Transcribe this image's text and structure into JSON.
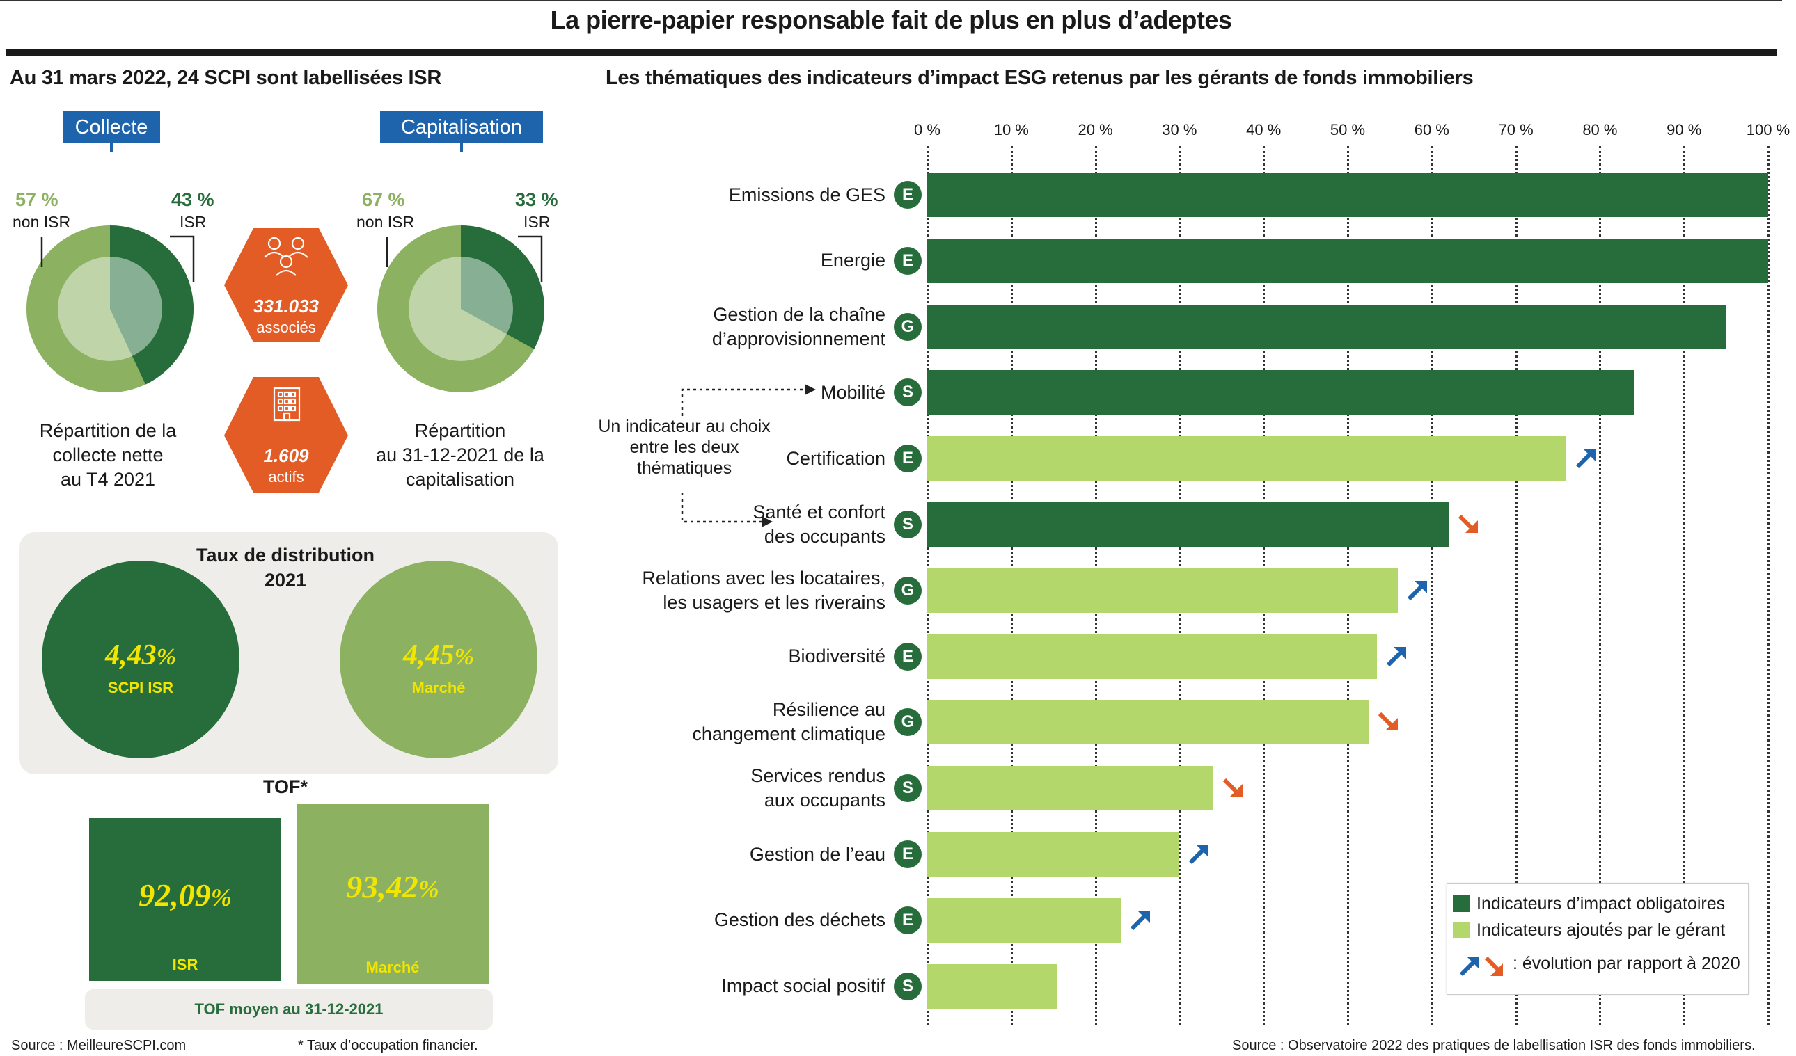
{
  "title": "La pierre-papier responsable fait de plus en plus d’adeptes",
  "left": {
    "heading": "Au 31 mars 2022, 24 SCPI sont labellisées ISR",
    "collecte": {
      "tag": "Collecte",
      "non_isr_pct": "57 %",
      "non_isr_label": "non ISR",
      "isr_pct": "43 %",
      "isr_label": "ISR",
      "caption": [
        "Répartition de la",
        "collecte nette",
        "au T4 2021"
      ]
    },
    "capitalisation": {
      "tag": "Capitalisation",
      "non_isr_pct": "67 %",
      "non_isr_label": "non ISR",
      "isr_pct": "33 %",
      "isr_label": "ISR",
      "caption": [
        "Répartition",
        "au 31-12-2021 de la",
        "capitalisation"
      ]
    },
    "associes": {
      "value": "331.033",
      "label": "associés"
    },
    "actifs": {
      "value": "1.609",
      "label": "actifs"
    },
    "distribution": {
      "title_line1": "Taux de distribution",
      "title_line2": "2021",
      "isr_value": "4,43",
      "isr_unit": "%",
      "isr_label": "SCPI ISR",
      "market_value": "4,45",
      "market_unit": "%",
      "market_label": "Marché"
    },
    "tof": {
      "title": "TOF*",
      "isr_value": "92,09",
      "isr_unit": "%",
      "isr_label": "ISR",
      "market_value": "93,42",
      "market_unit": "%",
      "market_label": "Marché",
      "footer": "TOF moyen au 31-12-2021"
    },
    "source": "Source : MeilleureSCPI.com",
    "footnote": "* Taux d’occupation financier."
  },
  "right": {
    "heading": "Les thématiques des indicateurs d’impact ESG retenus par les gérants de fonds immobiliers",
    "annotation": [
      "Un indicateur au choix",
      "entre les deux",
      "thématiques"
    ],
    "legend": {
      "mandatory": "Indicateurs d’impact obligatoires",
      "added": "Indicateurs ajoutés par le gérant",
      "evolution": ": évolution par rapport à 2020"
    },
    "source": "Source : Observatoire 2022 des pratiques de labellisation ISR des fonds immobiliers."
  },
  "colors": {
    "dark_green": "#266d3b",
    "light_green": "#b3d76b",
    "mid_green": "#8bb161",
    "pale_green": "#c0d6a3",
    "orange": "#e35c25",
    "blue": "#1e64ad",
    "yellow": "#f2e500"
  },
  "chart_data": [
    {
      "type": "pie",
      "categories": [
        "non ISR",
        "ISR"
      ],
      "values": [
        57,
        43
      ],
      "caption": "Répartition de la collecte nette au T4 2021"
    },
    {
      "type": "pie",
      "categories": [
        "non ISR",
        "ISR"
      ],
      "values": [
        67,
        33
      ],
      "caption": "Répartition au 31-12-2021 de la capitalisation"
    },
    {
      "type": "bar",
      "orientation": "horizontal",
      "title": "Les thématiques des indicateurs d’impact ESG retenus par les gérants de fonds immobiliers",
      "xlim": [
        0,
        100
      ],
      "xticks": [
        "0 %",
        "10 %",
        "20 %",
        "30 %",
        "40 %",
        "50 %",
        "60 %",
        "70 %",
        "80 %",
        "90 %",
        "100 %"
      ],
      "grid": "vertical dotted",
      "legend_position": "bottom-right",
      "categories": [
        "Emissions de GES",
        "Energie",
        "Gestion de la chaîne d’approvisionnement",
        "Mobilité",
        "Certification",
        "Santé et confort des occupants",
        "Relations avec les locataires, les usagers et les riverains",
        "Biodiversité",
        "Résilience au changement climatique",
        "Services rendus aux occupants",
        "Gestion de l’eau",
        "Gestion des déchets",
        "Impact social positif"
      ],
      "bars": [
        {
          "lines": [
            "Emissions de GES"
          ],
          "pillar": "E",
          "value": 100,
          "type": "mandatory",
          "trend": ""
        },
        {
          "lines": [
            "Energie"
          ],
          "pillar": "E",
          "value": 100,
          "type": "mandatory",
          "trend": ""
        },
        {
          "lines": [
            "Gestion de la chaîne",
            "d’approvisionnement"
          ],
          "pillar": "G",
          "value": 95,
          "type": "mandatory",
          "trend": ""
        },
        {
          "lines": [
            "Mobilité"
          ],
          "pillar": "S",
          "value": 84,
          "type": "mandatory",
          "trend": ""
        },
        {
          "lines": [
            "Certification"
          ],
          "pillar": "E",
          "value": 76,
          "type": "added",
          "trend": "up"
        },
        {
          "lines": [
            "Santé et confort",
            "des occupants"
          ],
          "pillar": "S",
          "value": 62,
          "type": "mandatory",
          "trend": "down"
        },
        {
          "lines": [
            "Relations avec les locataires,",
            "les usagers et les riverains"
          ],
          "pillar": "G",
          "value": 56,
          "type": "added",
          "trend": "up"
        },
        {
          "lines": [
            "Biodiversité"
          ],
          "pillar": "E",
          "value": 53.5,
          "type": "added",
          "trend": "up"
        },
        {
          "lines": [
            "Résilience au",
            "changement climatique"
          ],
          "pillar": "G",
          "value": 52.5,
          "type": "added",
          "trend": "down"
        },
        {
          "lines": [
            "Services rendus",
            "aux occupants"
          ],
          "pillar": "S",
          "value": 34,
          "type": "added",
          "trend": "down"
        },
        {
          "lines": [
            "Gestion de l’eau"
          ],
          "pillar": "E",
          "value": 30,
          "type": "added",
          "trend": "up"
        },
        {
          "lines": [
            "Gestion des déchets"
          ],
          "pillar": "E",
          "value": 23,
          "type": "added",
          "trend": "up"
        },
        {
          "lines": [
            "Impact social positif"
          ],
          "pillar": "S",
          "value": 15.5,
          "type": "added",
          "trend": ""
        }
      ]
    }
  ]
}
